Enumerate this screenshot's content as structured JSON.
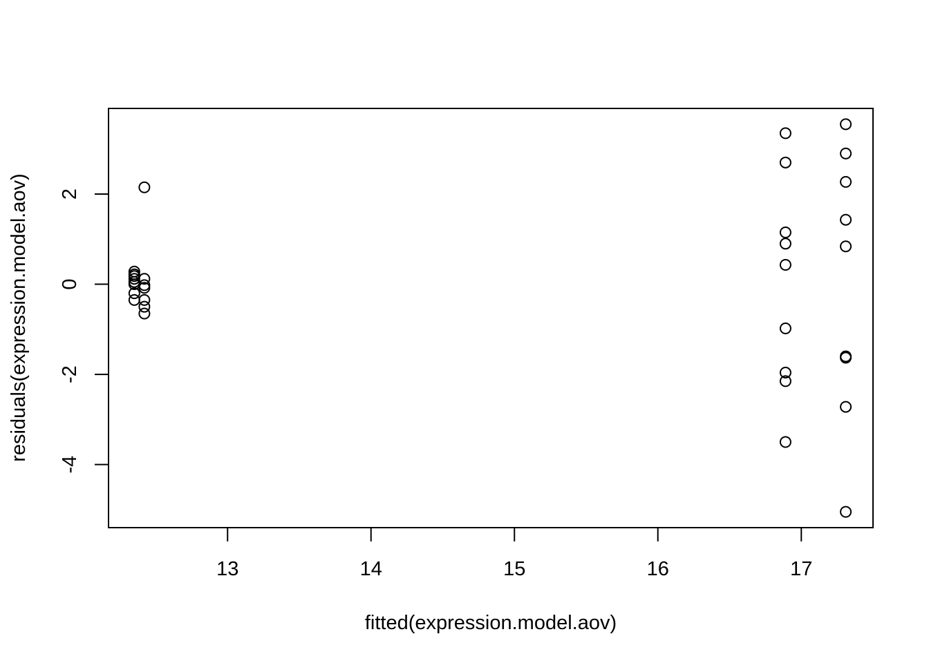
{
  "chart_data": {
    "type": "scatter",
    "title": "",
    "xlabel": "fitted(expression.model.aov)",
    "ylabel": "residuals(expression.model.aov)",
    "xlim": [
      12.17,
      17.5
    ],
    "ylim": [
      -5.4,
      3.9
    ],
    "x_ticks": [
      "13",
      "14",
      "15",
      "16",
      "17"
    ],
    "y_ticks": [
      "-4",
      "-2",
      "0",
      "2"
    ],
    "grid": false,
    "legend": "none",
    "marker": "open-circle",
    "color": "#000000",
    "points": [
      {
        "x": 12.35,
        "y": 0.28
      },
      {
        "x": 12.35,
        "y": 0.22
      },
      {
        "x": 12.35,
        "y": 0.18
      },
      {
        "x": 12.35,
        "y": 0.12
      },
      {
        "x": 12.35,
        "y": 0.05
      },
      {
        "x": 12.35,
        "y": 0.0
      },
      {
        "x": 12.35,
        "y": -0.2
      },
      {
        "x": 12.35,
        "y": -0.35
      },
      {
        "x": 12.42,
        "y": 2.15
      },
      {
        "x": 12.42,
        "y": 0.12
      },
      {
        "x": 12.42,
        "y": -0.02
      },
      {
        "x": 12.42,
        "y": -0.08
      },
      {
        "x": 12.42,
        "y": -0.35
      },
      {
        "x": 12.42,
        "y": -0.5
      },
      {
        "x": 12.42,
        "y": -0.65
      },
      {
        "x": 16.89,
        "y": 3.35
      },
      {
        "x": 16.89,
        "y": 2.7
      },
      {
        "x": 16.89,
        "y": 1.15
      },
      {
        "x": 16.89,
        "y": 0.9
      },
      {
        "x": 16.89,
        "y": 0.43
      },
      {
        "x": 16.89,
        "y": -0.98
      },
      {
        "x": 16.89,
        "y": -1.96
      },
      {
        "x": 16.89,
        "y": -2.15
      },
      {
        "x": 16.89,
        "y": -3.5
      },
      {
        "x": 17.31,
        "y": 3.55
      },
      {
        "x": 17.31,
        "y": 2.9
      },
      {
        "x": 17.31,
        "y": 2.27
      },
      {
        "x": 17.31,
        "y": 1.43
      },
      {
        "x": 17.31,
        "y": 0.84
      },
      {
        "x": 17.31,
        "y": -1.6
      },
      {
        "x": 17.31,
        "y": -1.63
      },
      {
        "x": 17.31,
        "y": -2.72
      },
      {
        "x": 17.31,
        "y": -5.05
      }
    ]
  }
}
